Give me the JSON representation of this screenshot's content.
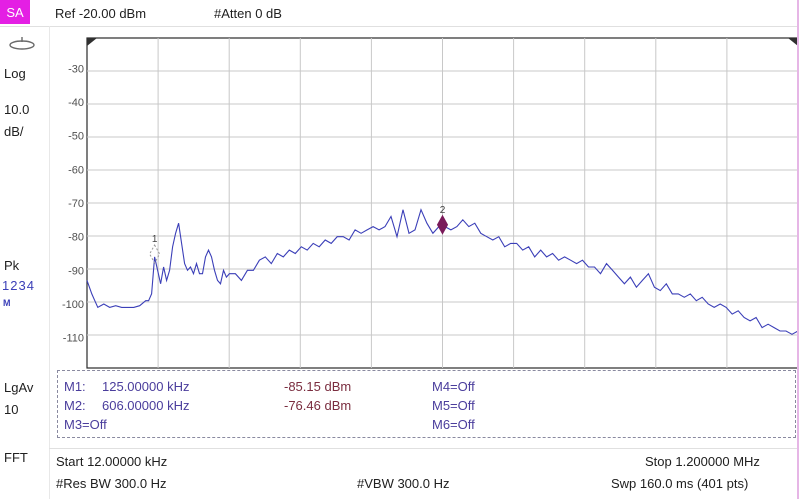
{
  "mode_tab": "SA",
  "header": {
    "reference_level": "Ref -20.00 dBm",
    "attenuation": "#Atten 0 dB"
  },
  "sidebar": {
    "scale_type": "Log",
    "scale_value": "10.0",
    "scale_unit": "dB/",
    "detector": "Pk",
    "traces": "1234",
    "trace_mode": "M",
    "averaging": "LgAv",
    "averaging_count": "10",
    "fft_label": "FFT"
  },
  "chart_data": {
    "type": "line",
    "ylim": [
      -119,
      -21
    ],
    "xlim": [
      12.0,
      1200.0
    ],
    "y_ticks": [
      "-30",
      "-40",
      "-50",
      "-60",
      "-70",
      "-80",
      "-90",
      "-100",
      "-110"
    ],
    "grid": true,
    "trace_color": "#3b3fb8",
    "marker_color": "#7a1a5a",
    "series": [
      {
        "x": [
          12,
          20,
          25,
          30,
          40,
          50,
          60,
          70,
          80,
          90,
          100,
          110,
          115,
          120,
          125,
          130,
          135,
          140,
          145,
          150,
          155,
          160,
          165,
          170,
          175,
          180,
          185,
          190,
          195,
          200,
          205,
          210,
          215,
          220,
          225,
          230,
          235,
          240,
          245,
          250,
          260,
          270,
          280,
          290,
          300,
          310,
          320,
          330,
          340,
          350,
          360,
          370,
          380,
          390,
          400,
          410,
          420,
          430,
          440,
          450,
          460,
          470,
          480,
          490,
          500,
          510,
          520,
          530,
          540,
          550,
          560,
          570,
          580,
          590,
          600,
          606,
          610,
          620,
          630,
          640,
          650,
          660,
          670,
          680,
          690,
          700,
          710,
          720,
          730,
          740,
          750,
          760,
          770,
          780,
          790,
          800,
          810,
          820,
          830,
          840,
          850,
          860,
          870,
          880,
          890,
          900,
          910,
          920,
          930,
          940,
          950,
          960,
          970,
          980,
          990,
          1000,
          1010,
          1020,
          1030,
          1040,
          1050,
          1060,
          1070,
          1080,
          1090,
          1100,
          1110,
          1120,
          1130,
          1140,
          1150,
          1160,
          1170,
          1180,
          1190,
          1200
        ],
        "y": [
          -93,
          -97,
          -99,
          -101,
          -100,
          -101,
          -100.5,
          -101,
          -101,
          -101,
          -100.5,
          -99,
          -99,
          -97,
          -86,
          -90,
          -94,
          -89,
          -93,
          -90,
          -83,
          -79,
          -76,
          -82,
          -88,
          -90,
          -89,
          -91,
          -88,
          -91,
          -91,
          -86,
          -84,
          -86,
          -90,
          -93,
          -94,
          -90,
          -92,
          -91,
          -91,
          -93,
          -90,
          -90,
          -87,
          -86,
          -88,
          -85,
          -86,
          -84,
          -85,
          -83,
          -84,
          -82,
          -83,
          -81,
          -82,
          -80,
          -80,
          -81,
          -78,
          -79,
          -78,
          -77,
          -78,
          -77,
          -74,
          -80,
          -72,
          -79,
          -78,
          -72,
          -76,
          -79,
          -77,
          -76.5,
          -77,
          -78,
          -77,
          -75,
          -77,
          -76,
          -79,
          -80,
          -81,
          -80,
          -83,
          -82,
          -82,
          -84,
          -83,
          -86,
          -84,
          -86,
          -85,
          -87,
          -86,
          -87,
          -88,
          -87,
          -89,
          -89,
          -91,
          -88,
          -90,
          -92,
          -94,
          -92,
          -95,
          -93,
          -91,
          -95,
          -96,
          -94,
          -97,
          -97,
          -98,
          -97,
          -99,
          -98,
          -100,
          -101,
          -100,
          -101,
          -103,
          -102,
          -104,
          -105,
          -104,
          -107,
          -106,
          -107,
          -108,
          -108,
          -109,
          -108
        ]
      }
    ],
    "markers": [
      {
        "label": "1",
        "x": 125,
        "y": -85.15
      },
      {
        "label": "2",
        "x": 606,
        "y": -76.46
      }
    ]
  },
  "marker_table": {
    "m1_label": "M1:",
    "m1_freq": "125.00000 kHz",
    "m1_value": "-85.15 dBm",
    "m2_label": "M2:",
    "m2_freq": "606.00000 kHz",
    "m2_value": "-76.46 dBm",
    "m3": "M3=Off",
    "m4": "M4=Off",
    "m5": "M5=Off",
    "m6": "M6=Off"
  },
  "footer": {
    "start": "Start 12.00000 kHz",
    "stop": "Stop 1.200000 MHz",
    "res_bw": "#Res BW 300.0  Hz",
    "vbw": "#VBW 300.0  Hz",
    "sweep": "Swp 160.0 ms (401 pts)"
  }
}
